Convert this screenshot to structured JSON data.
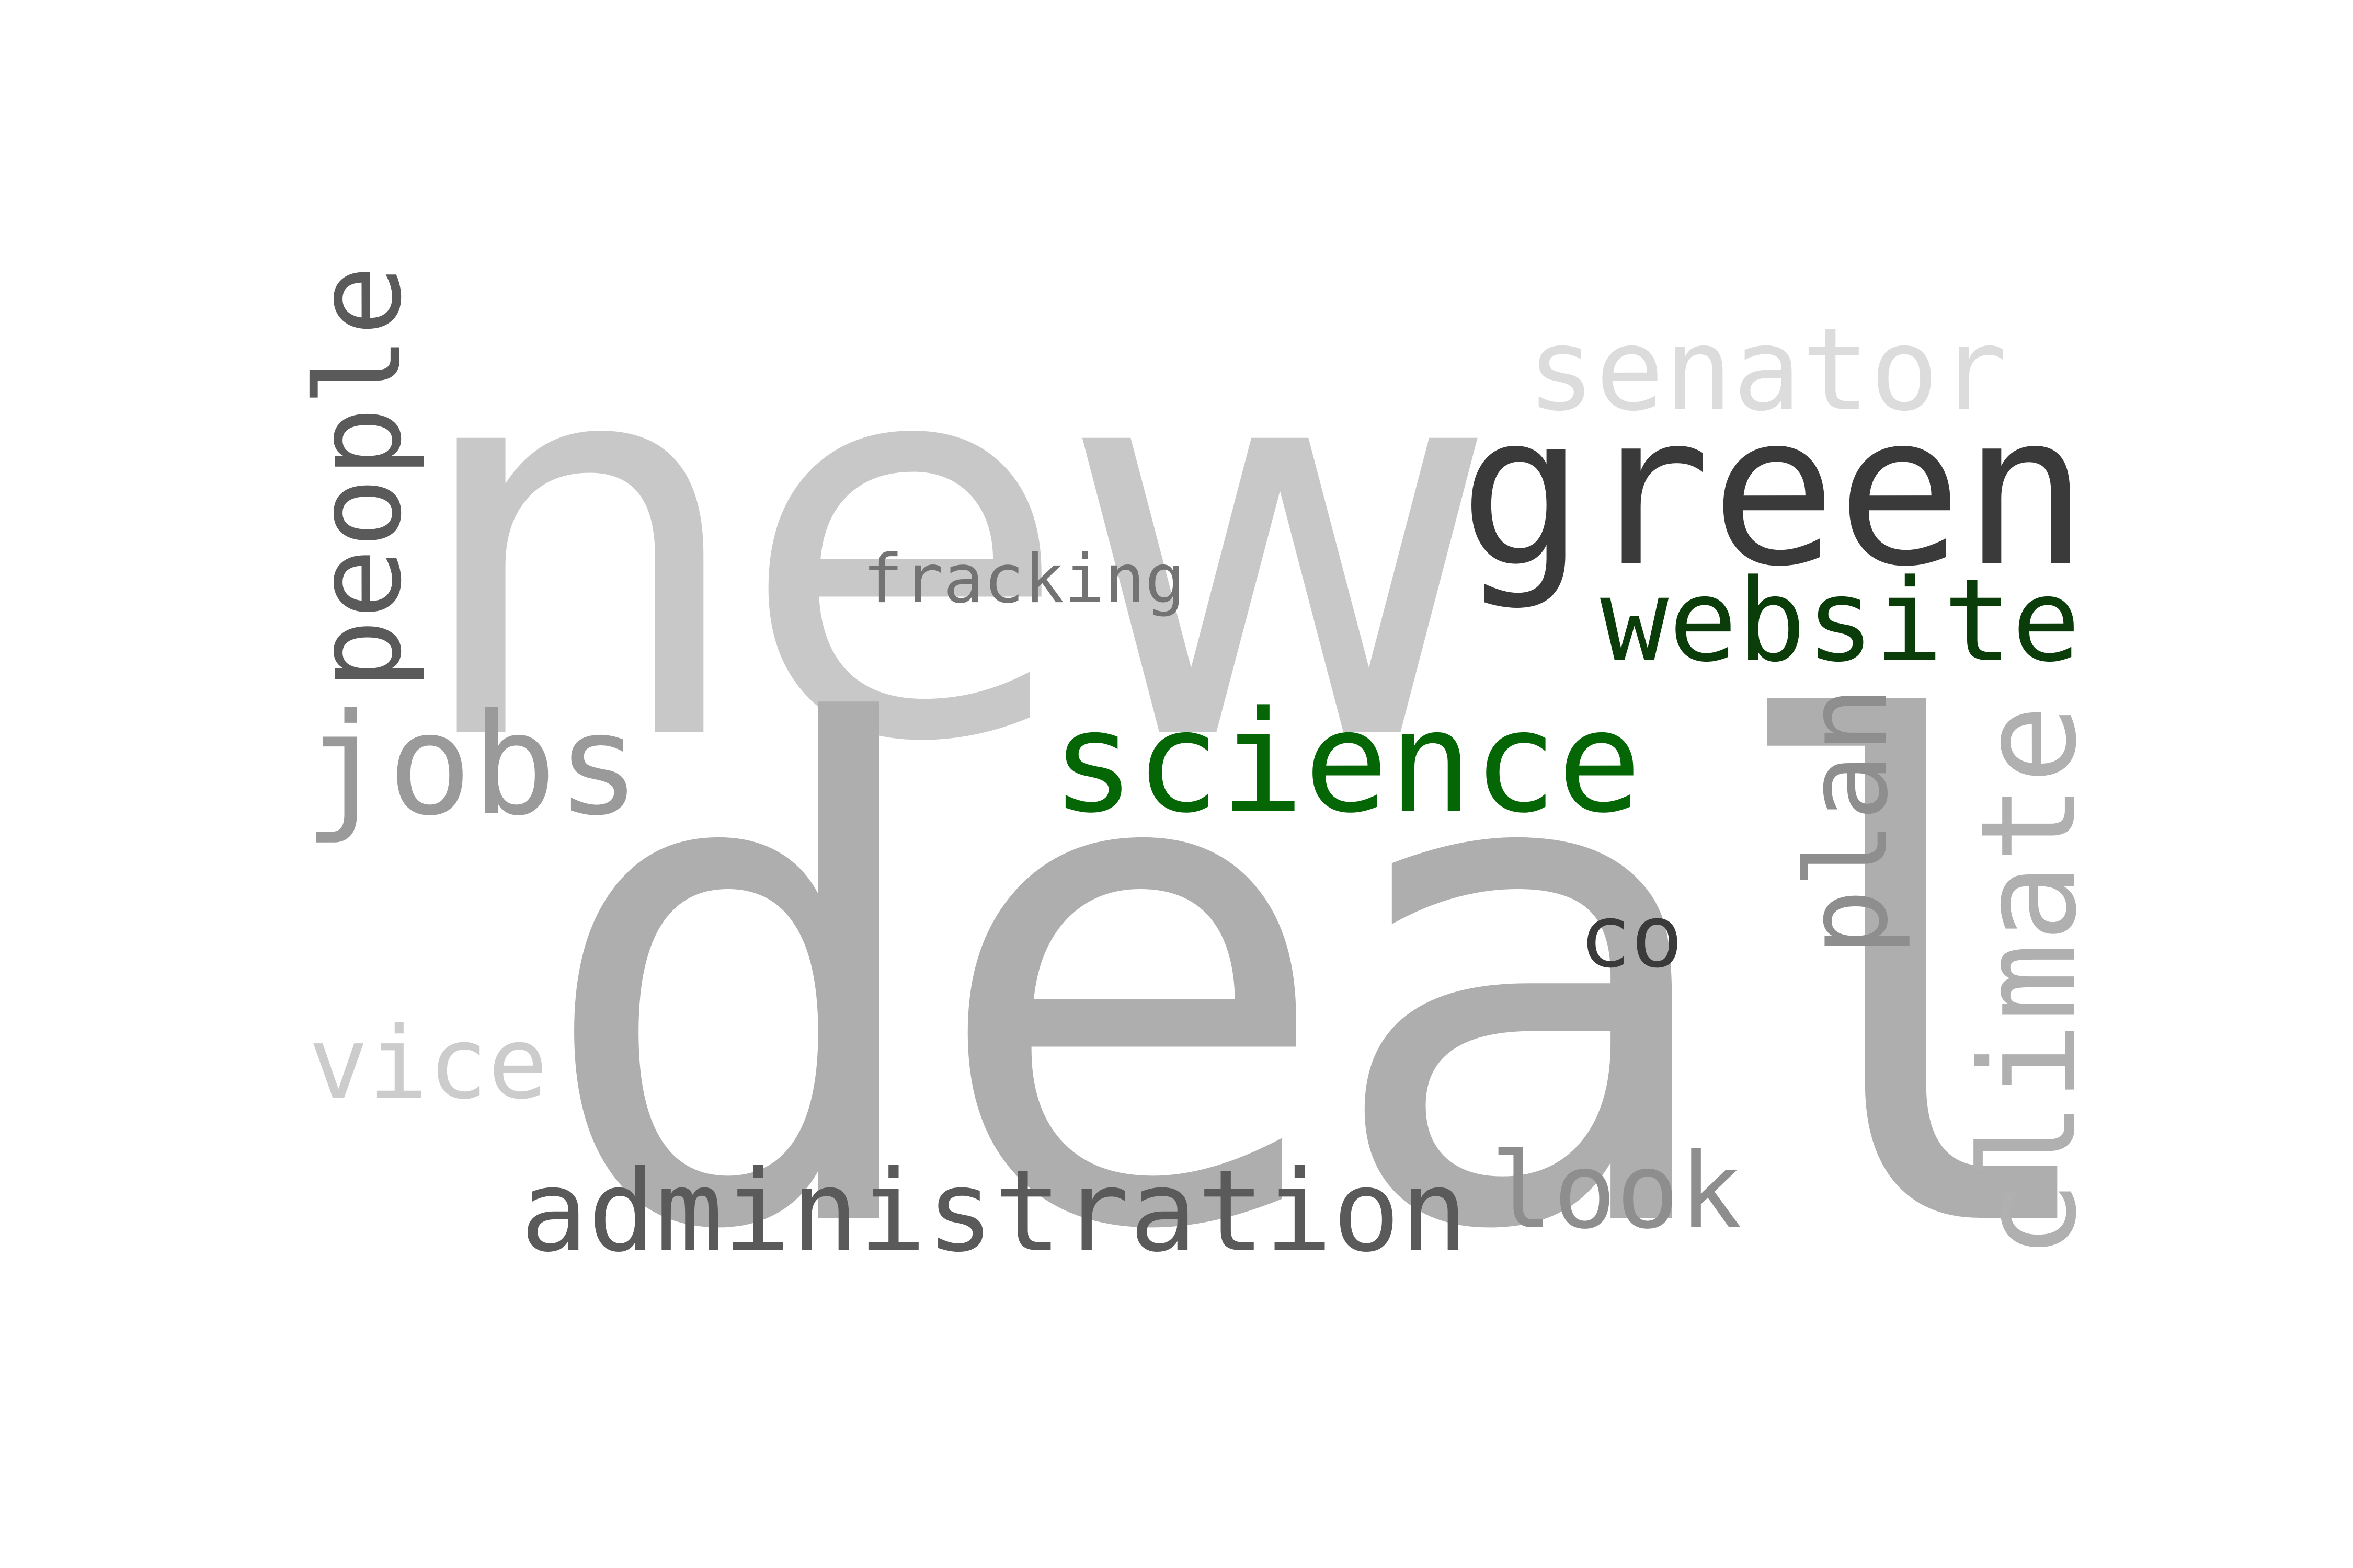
{
  "words": {
    "new": {
      "text": "new",
      "color": "#c8c8c8"
    },
    "deal": {
      "text": "deal",
      "color": "#aeaeae"
    },
    "green": {
      "text": "green",
      "color": "#3a3a3a"
    },
    "senator": {
      "text": "senator",
      "color": "#dcdcdc"
    },
    "website": {
      "text": "website",
      "color": "#0b3d0b"
    },
    "science": {
      "text": "science",
      "color": "#046604"
    },
    "fracking": {
      "text": "fracking",
      "color": "#737373"
    },
    "people": {
      "text": "people",
      "color": "#5a5a5a"
    },
    "jobs": {
      "text": "jobs",
      "color": "#9a9a9a"
    },
    "vice": {
      "text": "vice",
      "color": "#cccccc"
    },
    "administration": {
      "text": "administration",
      "color": "#5a5a5a"
    },
    "look": {
      "text": "look",
      "color": "#8e8e8e"
    },
    "co": {
      "text": "co",
      "color": "#3a3a3a"
    },
    "plan": {
      "text": "plan",
      "color": "#8e8e8e"
    },
    "climate": {
      "text": "climate",
      "color": "#b0b0b0"
    }
  }
}
